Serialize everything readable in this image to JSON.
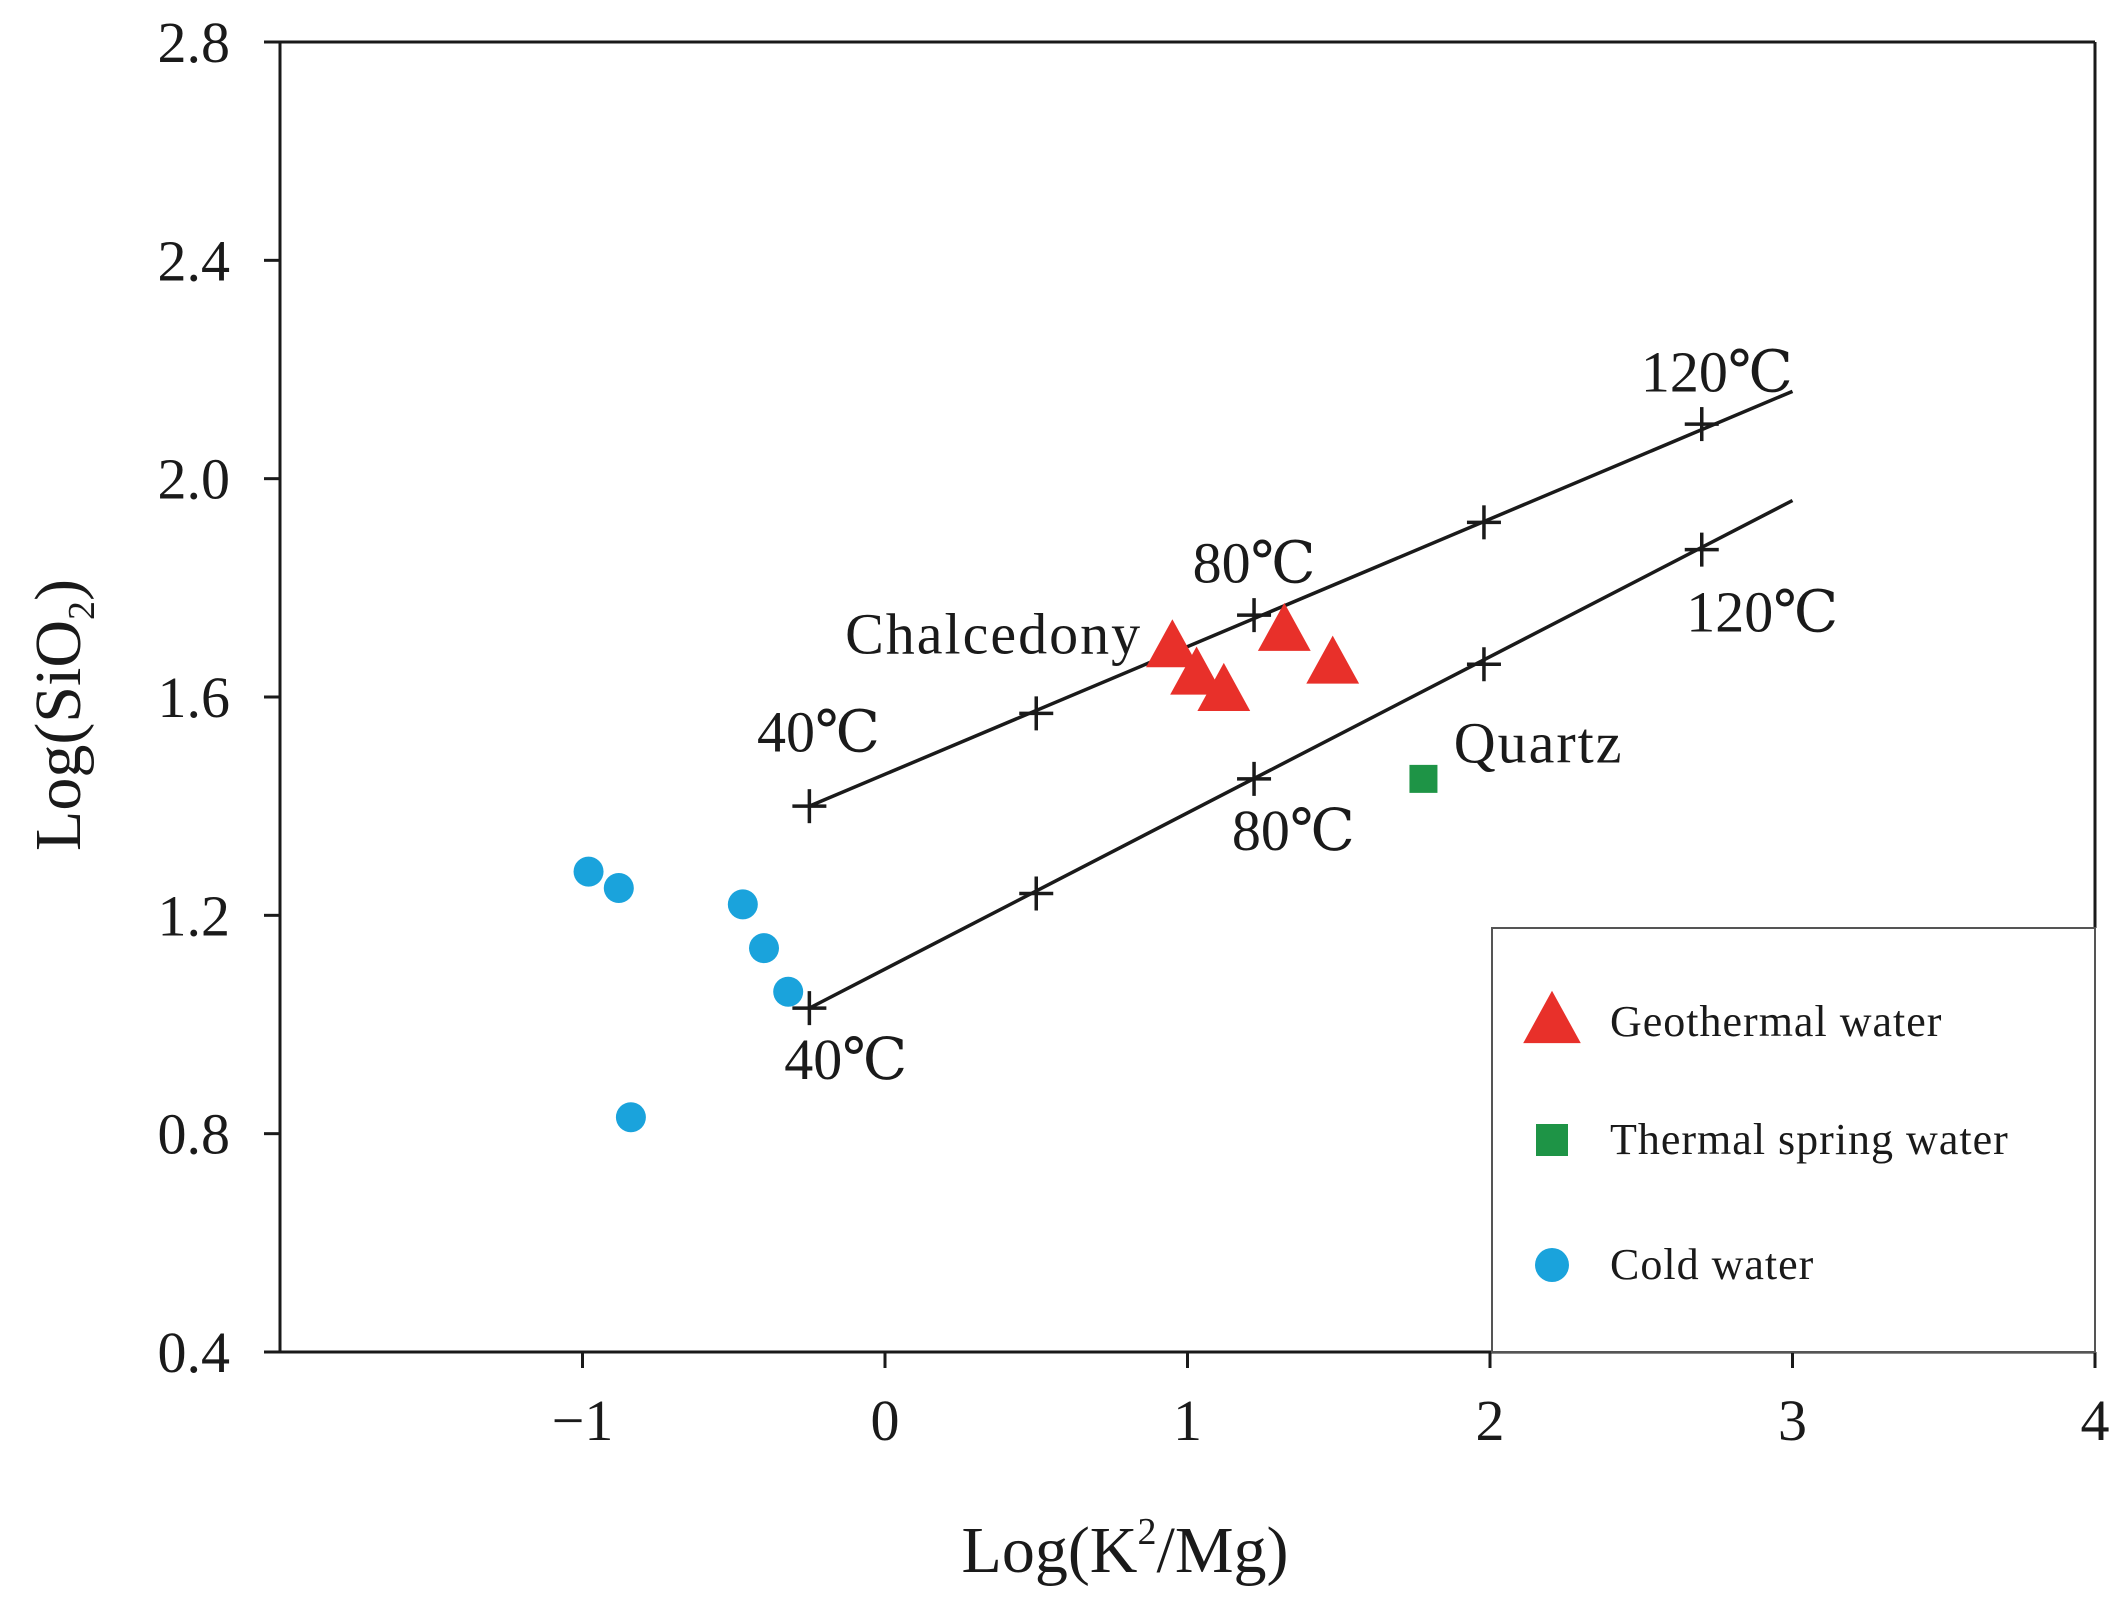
{
  "chart_data": {
    "type": "scatter",
    "xlabel_main": "Log(K",
    "xlabel_sup": "2",
    "xlabel_tail": "/Mg)",
    "ylabel_main": "Log(SiO",
    "ylabel_sub": "2",
    "ylabel_tail": ")",
    "xlim": [
      -2,
      4
    ],
    "ylim": [
      0.4,
      2.8
    ],
    "x_ticks": [
      {
        "value": -1,
        "label": "−1"
      },
      {
        "value": 0,
        "label": "0"
      },
      {
        "value": 1,
        "label": "1"
      },
      {
        "value": 2,
        "label": "2"
      },
      {
        "value": 3,
        "label": "3"
      },
      {
        "value": 4,
        "label": "4"
      }
    ],
    "y_ticks": [
      {
        "value": 0.4,
        "label": "0.4"
      },
      {
        "value": 0.8,
        "label": "0.8"
      },
      {
        "value": 1.2,
        "label": "1.2"
      },
      {
        "value": 1.6,
        "label": "1.6"
      },
      {
        "value": 2.0,
        "label": "2.0"
      },
      {
        "value": 2.4,
        "label": "2.4"
      },
      {
        "value": 2.8,
        "label": "2.8"
      }
    ],
    "grid": false,
    "legend_position": "bottom-right",
    "geothermometer_lines": [
      {
        "name": "Chalcedony",
        "label_at": [
          0.85,
          1.68
        ],
        "label_anchor": "end",
        "start": [
          -0.25,
          1.4
        ],
        "end": [
          3.0,
          2.16
        ],
        "marks": [
          {
            "x": -0.25,
            "y": 1.4,
            "label": "40℃",
            "label_at": [
              -0.22,
              1.5
            ]
          },
          {
            "x": 0.5,
            "y": 1.57
          },
          {
            "x": 1.22,
            "y": 1.75,
            "label": "80℃",
            "label_at": [
              1.22,
              1.81
            ]
          },
          {
            "x": 1.98,
            "y": 1.92
          },
          {
            "x": 2.7,
            "y": 2.1,
            "label": "120℃",
            "label_at": [
              2.75,
              2.16
            ]
          }
        ]
      },
      {
        "name": "Quartz",
        "label_at": [
          1.88,
          1.48
        ],
        "label_anchor": "start",
        "start": [
          -0.25,
          1.03
        ],
        "end": [
          3.0,
          1.96
        ],
        "marks": [
          {
            "x": -0.25,
            "y": 1.03,
            "label": "40℃",
            "label_at": [
              -0.13,
              0.9
            ]
          },
          {
            "x": 0.5,
            "y": 1.24
          },
          {
            "x": 1.22,
            "y": 1.45,
            "label": "80℃",
            "label_at": [
              1.35,
              1.32
            ]
          },
          {
            "x": 1.98,
            "y": 1.66
          },
          {
            "x": 2.7,
            "y": 1.87,
            "label": "120℃",
            "label_at": [
              2.9,
              1.72
            ]
          }
        ]
      }
    ],
    "series": [
      {
        "name": "Geothermal water",
        "marker": "triangle",
        "color": "#e8302a",
        "points": [
          [
            0.95,
            1.69
          ],
          [
            1.03,
            1.64
          ],
          [
            1.12,
            1.61
          ],
          [
            1.32,
            1.72
          ],
          [
            1.48,
            1.66
          ]
        ]
      },
      {
        "name": "Thermal spring water",
        "marker": "square",
        "color": "#1e9446",
        "points": [
          [
            1.78,
            1.45
          ]
        ]
      },
      {
        "name": "Cold water",
        "marker": "circle",
        "color": "#1aa3dc",
        "points": [
          [
            -0.98,
            1.28
          ],
          [
            -0.88,
            1.25
          ],
          [
            -0.47,
            1.22
          ],
          [
            -0.4,
            1.14
          ],
          [
            -0.32,
            1.06
          ],
          [
            -0.84,
            0.83
          ]
        ]
      }
    ]
  }
}
